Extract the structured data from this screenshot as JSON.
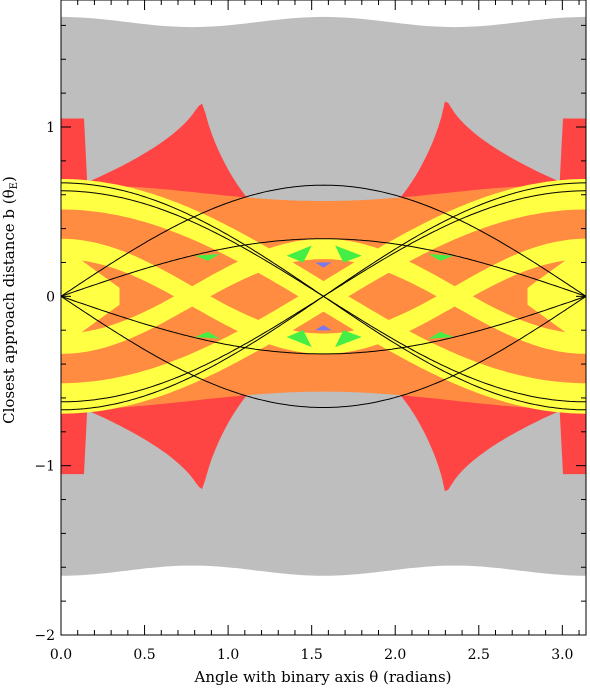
{
  "chart_data": {
    "type": "area",
    "xlabel": "Angle with binary axis θ (radians)",
    "ylabel_main": "Closest approach distance b (θ",
    "ylabel_sub": "E",
    "ylabel_close": ")",
    "xlim": [
      0,
      3.1416
    ],
    "ylim": [
      -2,
      1.75
    ],
    "xticks": [
      0,
      0.5,
      1,
      1.5,
      2,
      2.5,
      3
    ],
    "xtick_labels": [
      "0.0",
      "0.5",
      "1.0",
      "1.5",
      "2.0",
      "2.5",
      "3.0"
    ],
    "yticks": [
      -2,
      -1,
      0,
      1
    ],
    "ytick_labels": [
      "−2",
      "−1",
      "0",
      "1"
    ],
    "grid": false,
    "region_colors": {
      "zero": "#bebebe",
      "one": "#ff4444",
      "two": "#ff8c40",
      "three": "#ffff44",
      "four": "#44ee44",
      "five": "#7777ee",
      "caustic": "#000000"
    },
    "regions": {
      "outer_band_b": 1.62,
      "outer_band_wobble": 0.03,
      "red_cusp_x": [
        0.85,
        2.3
      ],
      "red_cusp_top_b": 1.22,
      "red_base_b": 1.05,
      "red_center_b": 0.32,
      "caustic_outer_amplitude": 0.67,
      "caustic_inner_amplitude": 0.34
    }
  }
}
